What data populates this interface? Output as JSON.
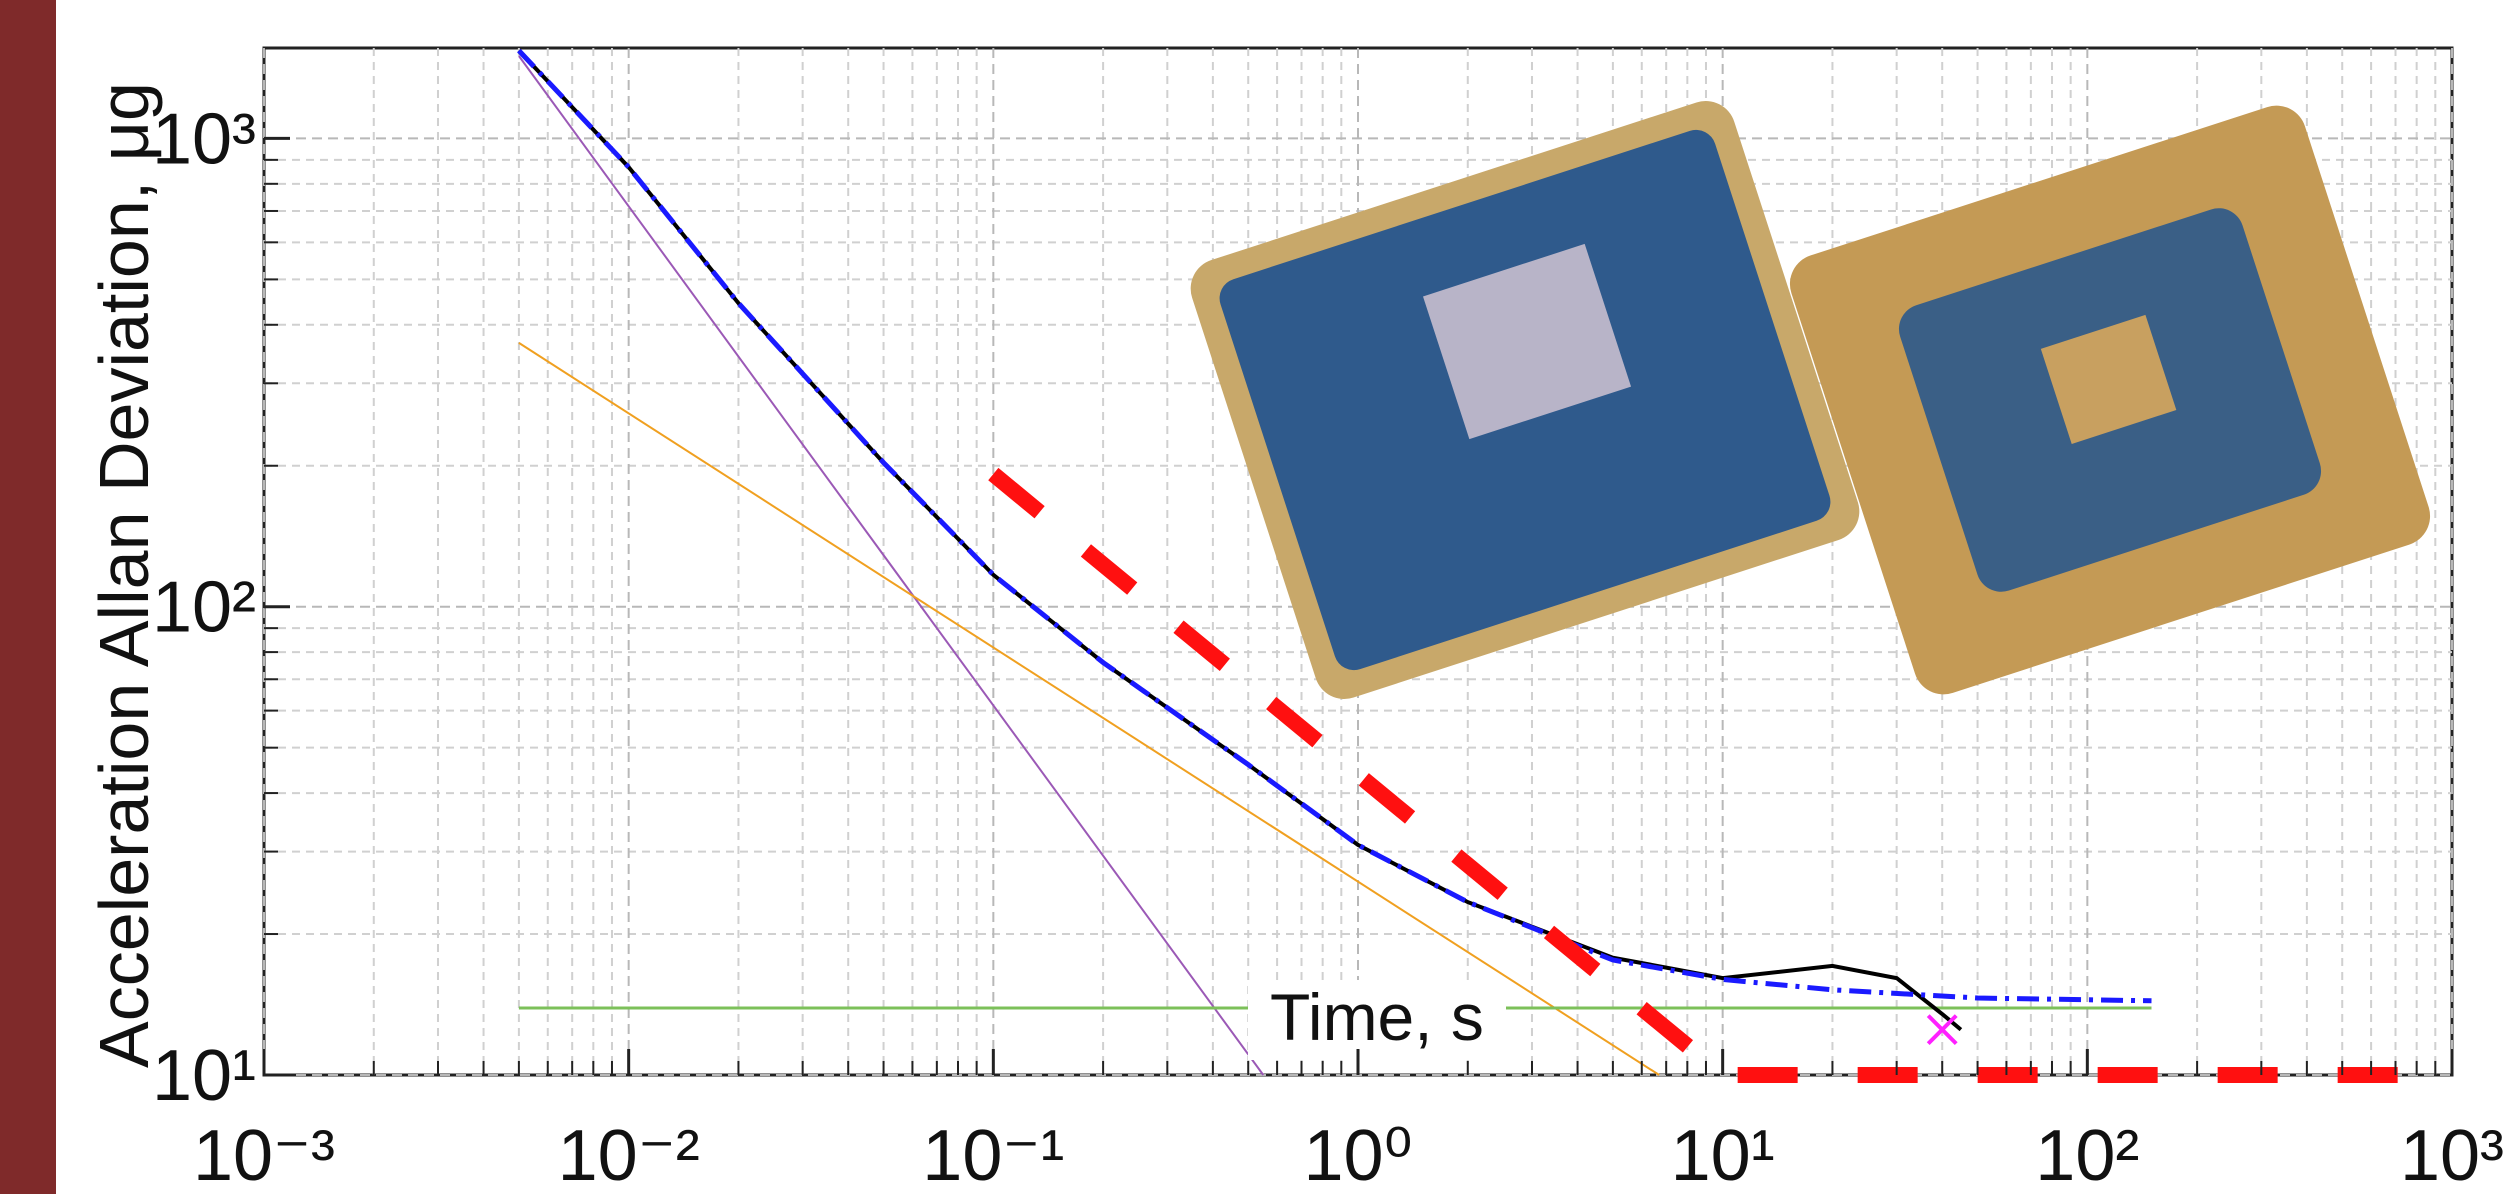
{
  "chart_data": {
    "type": "line",
    "y_label": "Acceleration  Allan Deviation, μg",
    "x_label": "Time, s",
    "log_x": true,
    "log_y": true,
    "grid": true,
    "minor_grid": true,
    "xlim": [
      0.001,
      1000
    ],
    "xticks": [
      {
        "value": 0.001,
        "label": "10⁻³"
      },
      {
        "value": 0.01,
        "label": "10⁻²"
      },
      {
        "value": 0.1,
        "label": "10⁻¹"
      },
      {
        "value": 1,
        "label": "10⁰"
      },
      {
        "value": 10,
        "label": "10¹"
      },
      {
        "value": 100,
        "label": "10²"
      },
      {
        "value": 1000,
        "label": "10³"
      }
    ],
    "ylim": [
      10,
      1560
    ],
    "yticks": [
      {
        "value": 10,
        "label": "10¹"
      },
      {
        "value": 100,
        "label": "10²"
      },
      {
        "value": 1000,
        "label": "10³"
      }
    ],
    "series": [
      {
        "color": "#9b59b6",
        "width": 2,
        "dash": "",
        "x": [
          0.005,
          0.55
        ],
        "values": [
          1500,
          10
        ]
      },
      {
        "color": "#f0a020",
        "width": 2,
        "dash": "",
        "x": [
          0.005,
          6.7
        ],
        "values": [
          366,
          10
        ]
      },
      {
        "color": "#7cc05a",
        "width": 3,
        "dash": "",
        "x": [
          0.005,
          150
        ],
        "values": [
          13.9,
          13.9
        ]
      },
      {
        "color": "#000000",
        "width": 4,
        "dash": "",
        "x": [
          0.005,
          0.01,
          0.02,
          0.05,
          0.1,
          0.2,
          0.5,
          1,
          2,
          5,
          10,
          20,
          30,
          40,
          45
        ],
        "values": [
          1540,
          868,
          445,
          203,
          117,
          76,
          46,
          31,
          23.4,
          17.8,
          16.1,
          17.1,
          16.1,
          13.5,
          12.5
        ]
      },
      {
        "color": "#1a1aff",
        "width": 5,
        "dash": "22 8 4 8",
        "x": [
          0.005,
          0.01,
          0.02,
          0.05,
          0.1,
          0.2,
          0.5,
          1,
          2,
          5,
          10,
          20,
          50,
          150
        ],
        "values": [
          1540,
          868,
          445,
          203,
          117,
          76,
          46,
          31,
          23.4,
          17.6,
          16.0,
          15.2,
          14.6,
          14.4
        ]
      },
      {
        "color": "#ff1010",
        "width": 16,
        "dash": "60 60",
        "x": [
          0.1,
          10,
          1000
        ],
        "values": [
          192,
          10,
          10
        ]
      },
      {
        "color": "#ff20ff",
        "marker": "x",
        "x": [
          40
        ],
        "values": [
          12.5
        ]
      }
    ]
  }
}
